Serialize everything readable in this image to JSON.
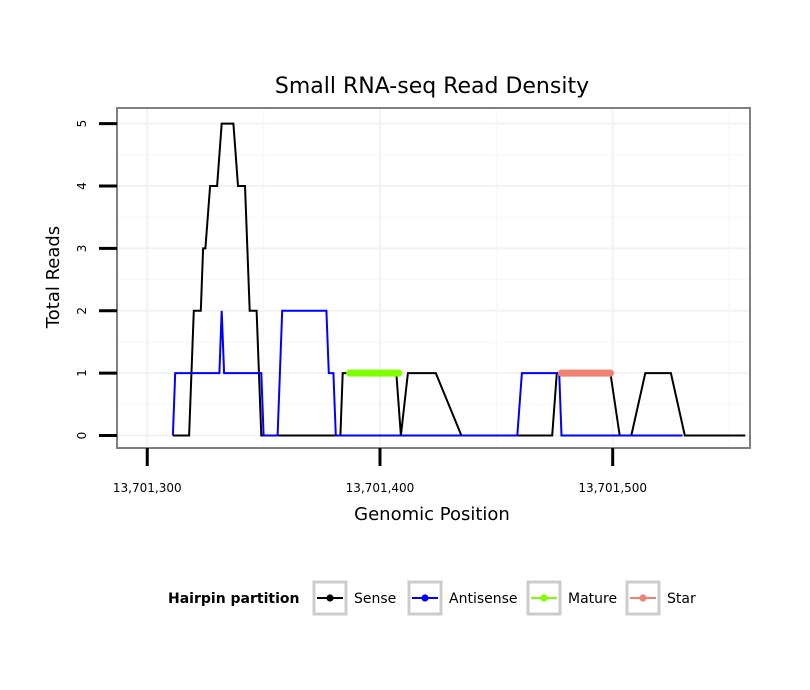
{
  "chart_data": {
    "type": "line",
    "title": "Small RNA-seq Read Density",
    "xlabel": "Genomic Position",
    "ylabel": "Total Reads",
    "xlim": [
      13701287,
      13701559
    ],
    "ylim": [
      -0.2,
      5.25
    ],
    "x_ticks": [
      13701300,
      13701400,
      13701500
    ],
    "x_tick_labels": [
      "13,701,300",
      "13,701,400",
      "13,701,500"
    ],
    "y_ticks": [
      0,
      1,
      2,
      3,
      4,
      5
    ],
    "y_tick_labels": [
      "0",
      "1",
      "2",
      "3",
      "4",
      "5"
    ],
    "grid": true,
    "legend": {
      "position": "bottom",
      "title": "Hairpin partition",
      "entries": [
        "Sense",
        "Antisense",
        "Mature",
        "Star"
      ]
    },
    "series": [
      {
        "name": "Sense",
        "color": "#000000",
        "x": [
          13701311,
          13701318,
          13701320,
          13701323,
          13701324,
          13701325,
          13701327,
          13701330,
          13701332,
          13701337,
          13701339,
          13701342,
          13701344,
          13701347,
          13701349,
          13701366,
          13701383,
          13701384,
          13701392,
          13701400,
          13701407,
          13701409,
          13701412,
          13701424,
          13701435,
          13701455,
          13701474,
          13701476,
          13701487,
          13701499,
          13701503,
          13701508,
          13701514,
          13701525,
          13701531,
          13701542,
          13701553,
          13701557
        ],
        "y": [
          0,
          0,
          2,
          2,
          3,
          3,
          4,
          4,
          5,
          5,
          4,
          4,
          2,
          2,
          0,
          0,
          0,
          1,
          1,
          1,
          1,
          0,
          1,
          1,
          0,
          0,
          0,
          1,
          1,
          1,
          0,
          0,
          1,
          1,
          0,
          0,
          0,
          0
        ]
      },
      {
        "name": "Antisense",
        "color": "#0000ff",
        "x": [
          13701311,
          13701312,
          13701320,
          13701331,
          13701332,
          13701333,
          13701340,
          13701349,
          13701350,
          13701356,
          13701358,
          13701366,
          13701377,
          13701378,
          13701380,
          13701381,
          13701390,
          13701408,
          13701435,
          13701459,
          13701461,
          13701470,
          13701477,
          13701478,
          13701490,
          13701510,
          13701530
        ],
        "y": [
          0,
          1,
          1,
          1,
          2,
          1,
          1,
          1,
          0,
          0,
          2,
          2,
          2,
          1,
          1,
          0,
          0,
          0,
          0,
          0,
          1,
          1,
          1,
          0,
          0,
          0,
          0
        ]
      },
      {
        "name": "Mature",
        "color": "#80ff00",
        "x": [
          13701387,
          13701388,
          13701389,
          13701390,
          13701391,
          13701392,
          13701393,
          13701394,
          13701395,
          13701396,
          13701397,
          13701398,
          13701399,
          13701400,
          13701401,
          13701402,
          13701403,
          13701404,
          13701405,
          13701406,
          13701407,
          13701408
        ],
        "y": [
          1,
          1,
          1,
          1,
          1,
          1,
          1,
          1,
          1,
          1,
          1,
          1,
          1,
          1,
          1,
          1,
          1,
          1,
          1,
          1,
          1,
          1
        ]
      },
      {
        "name": "Star",
        "color": "#f08070",
        "x": [
          13701478,
          13701479,
          13701480,
          13701481,
          13701482,
          13701483,
          13701484,
          13701485,
          13701486,
          13701487,
          13701488,
          13701489,
          13701490,
          13701491,
          13701492,
          13701493,
          13701494,
          13701495,
          13701496,
          13701497,
          13701498,
          13701499
        ],
        "y": [
          1,
          1,
          1,
          1,
          1,
          1,
          1,
          1,
          1,
          1,
          1,
          1,
          1,
          1,
          1,
          1,
          1,
          1,
          1,
          1,
          1,
          1
        ]
      }
    ]
  }
}
